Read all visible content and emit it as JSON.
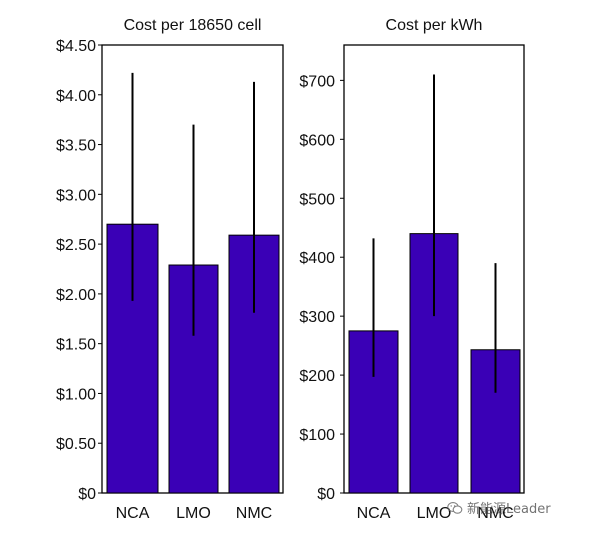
{
  "chart_data": [
    {
      "type": "bar",
      "title": "Cost per 18650 cell",
      "categories": [
        "NCA",
        "LMO",
        "NMC"
      ],
      "values": [
        2.7,
        2.29,
        2.59
      ],
      "error_low": [
        1.93,
        1.58,
        1.81
      ],
      "error_high": [
        4.22,
        3.7,
        4.13
      ],
      "ylim": [
        0,
        4.5
      ],
      "yticks": [
        0,
        0.5,
        1.0,
        1.5,
        2.0,
        2.5,
        3.0,
        3.5,
        4.0,
        4.5
      ],
      "ytick_labels": [
        "$0",
        "$0.50",
        "$1.00",
        "$1.50",
        "$2.00",
        "$2.50",
        "$3.00",
        "$3.50",
        "$4.00",
        "$4.50"
      ],
      "bar_color": "#3a00b6",
      "grid": false
    },
    {
      "type": "bar",
      "title": "Cost per kWh",
      "categories": [
        "NCA",
        "LMO",
        "NMC"
      ],
      "values": [
        275,
        440,
        243
      ],
      "error_low": [
        197,
        300,
        170
      ],
      "error_high": [
        432,
        710,
        390
      ],
      "ylim": [
        0,
        760
      ],
      "yticks": [
        0,
        100,
        200,
        300,
        400,
        500,
        600,
        700
      ],
      "ytick_labels": [
        "$0",
        "$100",
        "$200",
        "$300",
        "$400",
        "$500",
        "$600",
        "$700"
      ],
      "bar_color": "#3a00b6",
      "grid": false
    }
  ],
  "watermark": {
    "text": "新能源Leader",
    "icon": "wechat-icon"
  }
}
